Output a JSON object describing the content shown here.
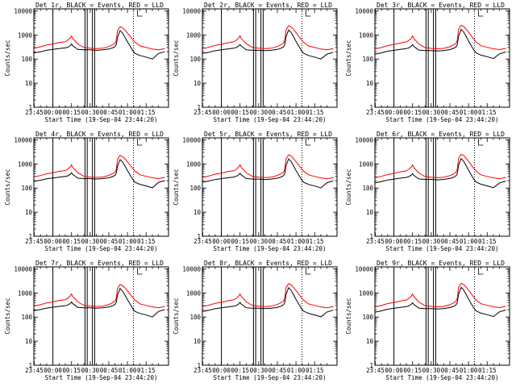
{
  "colors": {
    "events": "#000000",
    "lld": "#ff0000",
    "background": "#ffffff"
  },
  "xlabel": "Start Time (19-Sep-04 23:44:20)",
  "ylabel": "Counts/sec",
  "chart_data": {
    "type": "line",
    "title_template": "Det {n}r, BLACK = Events, RED = LLD",
    "xlabel": "Start Time (19-Sep-04 23:44:20)",
    "ylabel": "Counts/sec",
    "yscale": "log",
    "ylim": [
      1,
      12000
    ],
    "xlim": [
      -15.3,
      93
    ],
    "x_unit": "minutes after 00:00 (20-Sep-04)",
    "x_ticks": [
      -15,
      0,
      15,
      30,
      45,
      60,
      75
    ],
    "x_tick_labels": [
      "23:45",
      "00:00",
      "00:15",
      "00:30",
      "00:45",
      "01:00",
      "01:15"
    ],
    "y_ticks": [
      1,
      10,
      100,
      1000,
      10000
    ],
    "y_tick_labels": [
      "1",
      "10",
      "100",
      "1000",
      "10000"
    ],
    "vertical_lines_solid": [
      0,
      25.8,
      27.6,
      31.8,
      33.6
    ],
    "vertical_lines_dotted": [
      64.8
    ],
    "x": [
      -15,
      -10,
      -5,
      0,
      5,
      10,
      12,
      14,
      15,
      16,
      18,
      20,
      25,
      30,
      35,
      40,
      45,
      48,
      50,
      51,
      52,
      54,
      56,
      58,
      60,
      62,
      64,
      66,
      70,
      75,
      80,
      85,
      90
    ],
    "panels": [
      {
        "det": "1",
        "title": "Det 1r, BLACK = Events, RED = LLD",
        "series": [
          {
            "name": "BLACK = Events",
            "values": [
              180,
              200,
              230,
              250,
              270,
              290,
              310,
              360,
              420,
              350,
              300,
              250,
              240,
              240,
              230,
              240,
              260,
              290,
              330,
              400,
              800,
              1500,
              1200,
              800,
              520,
              350,
              230,
              170,
              140,
              120,
              100,
              170,
              200
            ]
          },
          {
            "name": "RED = LLD",
            "values": [
              280,
              320,
              380,
              420,
              480,
              520,
              600,
              750,
              900,
              700,
              550,
              420,
              300,
              280,
              270,
              280,
              330,
              390,
              450,
              600,
              1500,
              2200,
              2000,
              1600,
              1200,
              900,
              650,
              500,
              350,
              300,
              260,
              240,
              270
            ]
          }
        ]
      },
      {
        "det": "2",
        "title": "Det 2r, BLACK = Events, RED = LLD",
        "series": [
          {
            "name": "BLACK = Events",
            "values": [
              170,
              190,
              220,
              240,
              260,
              280,
              300,
              350,
              400,
              340,
              290,
              240,
              230,
              230,
              220,
              230,
              250,
              280,
              320,
              400,
              850,
              1600,
              1300,
              850,
              540,
              360,
              240,
              175,
              140,
              120,
              100,
              160,
              190
            ]
          },
          {
            "name": "RED = LLD",
            "values": [
              270,
              310,
              370,
              410,
              470,
              520,
              600,
              760,
              920,
              710,
              560,
              430,
              300,
              280,
              270,
              280,
              330,
              390,
              460,
              620,
              1600,
              2400,
              2200,
              1700,
              1250,
              920,
              660,
              500,
              350,
              300,
              260,
              240,
              270
            ]
          }
        ]
      },
      {
        "det": "3",
        "title": "Det 3r, BLACK = Events, RED = LLD",
        "series": [
          {
            "name": "BLACK = Events",
            "values": [
              160,
              180,
              210,
              230,
              250,
              270,
              290,
              340,
              390,
              330,
              280,
              235,
              225,
              225,
              215,
              225,
              245,
              275,
              320,
              400,
              900,
              1700,
              1350,
              880,
              560,
              370,
              245,
              180,
              145,
              125,
              105,
              165,
              195
            ]
          },
          {
            "name": "RED = LLD",
            "values": [
              260,
              300,
              360,
              400,
              460,
              510,
              590,
              740,
              900,
              700,
              550,
              420,
              295,
              275,
              265,
              275,
              325,
              385,
              455,
              610,
              1700,
              2500,
              2300,
              1750,
              1300,
              950,
              680,
              510,
              355,
              305,
              265,
              245,
              275
            ]
          }
        ]
      },
      {
        "det": "4",
        "title": "Det 4r, BLACK = Events, RED = LLD",
        "series": [
          {
            "name": "BLACK = Events",
            "values": [
              190,
              210,
              240,
              260,
              280,
              300,
              320,
              370,
              430,
              360,
              310,
              255,
              245,
              245,
              235,
              245,
              265,
              295,
              335,
              410,
              820,
              1500,
              1220,
              820,
              530,
              355,
              235,
              172,
              142,
              122,
              102,
              172,
              202
            ]
          },
          {
            "name": "RED = LLD",
            "values": [
              290,
              330,
              390,
              430,
              490,
              530,
              610,
              760,
              910,
              710,
              560,
              430,
              305,
              285,
              275,
              285,
              335,
              395,
              455,
              610,
              1550,
              2250,
              2050,
              1620,
              1220,
              910,
              660,
              505,
              355,
              305,
              265,
              245,
              275
            ]
          }
        ]
      },
      {
        "det": "5",
        "title": "Det 5r, BLACK = Events, RED = LLD",
        "series": [
          {
            "name": "BLACK = Events",
            "values": [
              175,
              195,
              225,
              245,
              265,
              285,
              305,
              355,
              410,
              345,
              295,
              245,
              235,
              235,
              225,
              235,
              255,
              285,
              325,
              405,
              860,
              1600,
              1280,
              840,
              535,
              358,
              238,
              174,
              141,
              121,
              101,
              166,
              196
            ]
          },
          {
            "name": "RED = LLD",
            "values": [
              275,
              315,
              375,
              415,
              475,
              520,
              600,
              755,
              915,
              705,
              555,
              425,
              302,
              282,
              272,
              282,
              332,
              392,
              458,
              615,
              1620,
              2380,
              2150,
              1680,
              1240,
              915,
              662,
              502,
              352,
              302,
              262,
              242,
              272
            ]
          }
        ]
      },
      {
        "det": "6",
        "title": "Det 6r, BLACK = Events, RED = LLD",
        "series": [
          {
            "name": "BLACK = Events",
            "values": [
              165,
              185,
              215,
              235,
              255,
              275,
              295,
              345,
              395,
              335,
              285,
              238,
              228,
              228,
              218,
              228,
              248,
              278,
              322,
              402,
              880,
              1650,
              1320,
              860,
              550,
              365,
              242,
              178,
              143,
              123,
              103,
              163,
              193
            ]
          },
          {
            "name": "RED = LLD",
            "values": [
              265,
              305,
              365,
              405,
              465,
              515,
              595,
              745,
              905,
              702,
              552,
              422,
              298,
              278,
              268,
              278,
              328,
              388,
              452,
              612,
              1680,
              2450,
              2250,
              1720,
              1280,
              935,
              672,
              508,
              353,
              303,
              263,
              243,
              273
            ]
          }
        ]
      },
      {
        "det": "7",
        "title": "Det 7r, BLACK = Events, RED = LLD",
        "series": [
          {
            "name": "BLACK = Events",
            "values": [
              185,
              205,
              235,
              255,
              275,
              295,
              315,
              365,
              425,
              355,
              305,
              252,
              242,
              242,
              232,
              242,
              262,
              292,
              332,
              405,
              810,
              1520,
              1210,
              810,
              525,
              352,
              232,
              171,
              141,
              121,
              101,
              171,
              201
            ]
          },
          {
            "name": "RED = LLD",
            "values": [
              285,
              325,
              385,
              425,
              485,
              525,
              605,
              755,
              905,
              705,
              555,
              425,
              303,
              283,
              273,
              283,
              333,
              393,
              453,
              605,
              1520,
              2220,
              2020,
              1610,
              1210,
              905,
              655,
              503,
              353,
              303,
              263,
              243,
              273
            ]
          }
        ]
      },
      {
        "det": "8",
        "title": "Det 8r, BLACK = Events, RED = LLD",
        "series": [
          {
            "name": "BLACK = Events",
            "values": [
              170,
              190,
              220,
              240,
              260,
              280,
              300,
              350,
              405,
              340,
              290,
              242,
              232,
              232,
              222,
              232,
              252,
              282,
              322,
              402,
              870,
              1630,
              1300,
              850,
              545,
              362,
              240,
              176,
              142,
              122,
              102,
              162,
              192
            ]
          },
          {
            "name": "RED = LLD",
            "values": [
              270,
              310,
              370,
              410,
              470,
              518,
              598,
              752,
              912,
              706,
              556,
              426,
              300,
              280,
              270,
              280,
              330,
              390,
              456,
              618,
              1650,
              2420,
              2200,
              1700,
              1260,
              925,
              665,
              505,
              352,
              302,
              262,
              242,
              272
            ]
          }
        ]
      },
      {
        "det": "9",
        "title": "Det 9r, BLACK = Events, RED = LLD",
        "series": [
          {
            "name": "BLACK = Events",
            "values": [
              160,
              180,
              210,
              230,
              250,
              270,
              290,
              340,
              390,
              330,
              280,
              235,
              225,
              225,
              215,
              225,
              245,
              275,
              320,
              400,
              900,
              1700,
              1350,
              880,
              560,
              370,
              245,
              180,
              145,
              125,
              105,
              165,
              195
            ]
          },
          {
            "name": "RED = LLD",
            "values": [
              260,
              300,
              360,
              400,
              460,
              510,
              590,
              740,
              900,
              700,
              550,
              420,
              295,
              275,
              265,
              275,
              325,
              385,
              455,
              610,
              1700,
              2500,
              2300,
              1750,
              1300,
              950,
              680,
              510,
              355,
              305,
              265,
              245,
              275
            ]
          }
        ]
      }
    ]
  }
}
